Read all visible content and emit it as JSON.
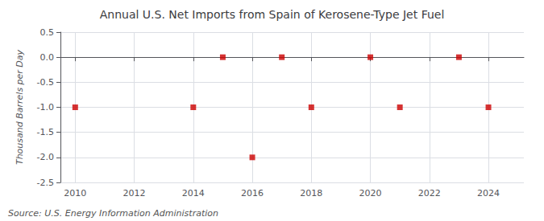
{
  "chart_data": {
    "type": "scatter",
    "title": "Annual U.S. Net Imports from Spain of Kerosene-Type Jet Fuel",
    "ylabel": "Thousand Barrels per Day",
    "annotations": [
      "Source: U.S. Energy Information Administration"
    ],
    "x": [
      2010,
      2014,
      2015,
      2016,
      2017,
      2018,
      2020,
      2021,
      2023,
      2024
    ],
    "values": [
      -1.0,
      -1.0,
      0.0,
      -2.0,
      0.0,
      -1.0,
      0.0,
      -1.0,
      0.0,
      -1.0
    ],
    "color": "#cc0000",
    "marker": "square",
    "xlim": [
      2009.5,
      2025.2
    ],
    "xticks": [
      2010,
      2012,
      2014,
      2016,
      2018,
      2020,
      2022,
      2024
    ],
    "ylim": [
      -2.5,
      0.5
    ],
    "yticks": [
      0.5,
      {
        "value": 0.0,
        "label": "0.0"
      },
      -0.5,
      {
        "value": -1.0,
        "label": "-1.0"
      },
      -1.5,
      {
        "value": -2.0,
        "label": "-2.0"
      },
      -2.5
    ],
    "grid": true
  }
}
